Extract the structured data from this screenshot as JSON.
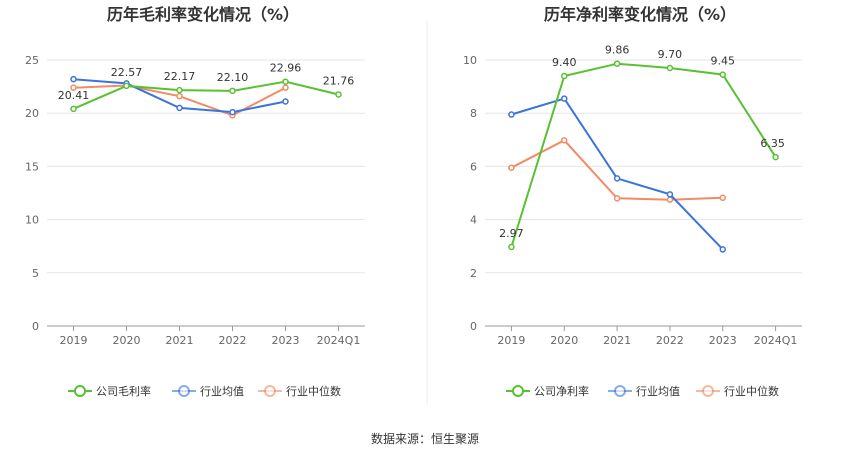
{
  "source_text": "数据来源：恒生聚源",
  "chart_data": [
    {
      "type": "line",
      "title": "历年毛利率变化情况（%）",
      "categories": [
        "2019",
        "2020",
        "2021",
        "2022",
        "2023",
        "2024Q1"
      ],
      "ylim": [
        0,
        25
      ],
      "yticks": [
        0,
        5,
        10,
        15,
        20,
        25
      ],
      "grid": true,
      "legend_position": "bottom",
      "series": [
        {
          "name": "公司毛利率",
          "color": "#5ac033",
          "values": [
            20.41,
            22.57,
            22.17,
            22.1,
            22.96,
            21.76
          ],
          "labels": [
            "20.41",
            "22.57",
            "22.17",
            "22.10",
            "22.96",
            "21.76"
          ]
        },
        {
          "name": "行业均值",
          "color": "#3b74db",
          "values": [
            23.2,
            22.8,
            20.5,
            20.1,
            21.1,
            null
          ]
        },
        {
          "name": "行业中位数",
          "color": "#f08c65",
          "values": [
            22.4,
            22.6,
            21.6,
            19.8,
            22.4,
            null
          ]
        }
      ]
    },
    {
      "type": "line",
      "title": "历年净利率变化情况（%）",
      "categories": [
        "2019",
        "2020",
        "2021",
        "2022",
        "2023",
        "2024Q1"
      ],
      "ylim": [
        0,
        10
      ],
      "yticks": [
        0,
        2,
        4,
        6,
        8,
        10
      ],
      "grid": true,
      "legend_position": "bottom",
      "series": [
        {
          "name": "公司净利率",
          "color": "#5ac033",
          "values": [
            2.97,
            9.4,
            9.86,
            9.7,
            9.45,
            6.35
          ],
          "labels": [
            "2.97",
            "9.40",
            "9.86",
            "9.70",
            "9.45",
            "6.35"
          ]
        },
        {
          "name": "行业均值",
          "color": "#3b74db",
          "values": [
            7.95,
            8.55,
            5.55,
            4.95,
            2.88,
            null
          ]
        },
        {
          "name": "行业中位数",
          "color": "#f08c65",
          "values": [
            5.95,
            6.98,
            4.8,
            4.75,
            4.82,
            null
          ]
        }
      ]
    }
  ]
}
